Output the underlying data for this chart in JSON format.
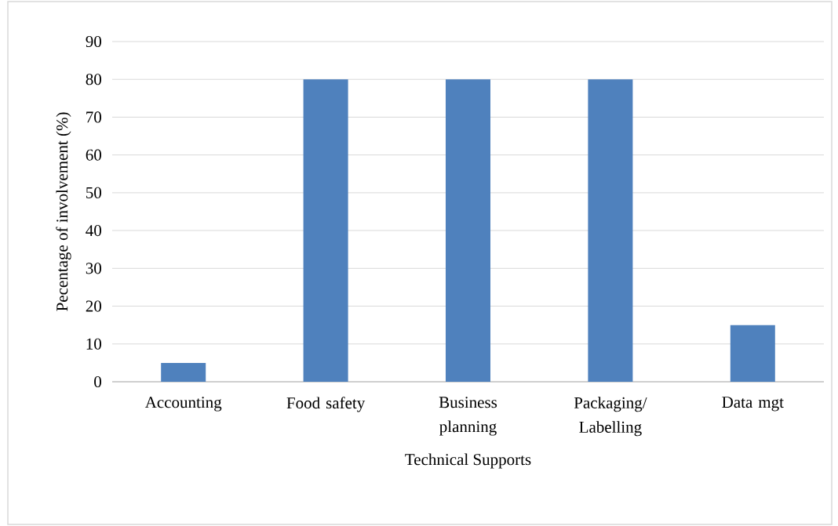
{
  "chart_data": {
    "type": "bar",
    "categories": [
      "Accounting",
      "Food safety",
      "Business planning",
      "Packaging/ Labelling",
      "Data mgt"
    ],
    "values": [
      5,
      80,
      80,
      80,
      15
    ],
    "color": "#4f81bd",
    "xlabel": "Technical Supports",
    "ylabel": "Pecentage of involvement (%)",
    "ylim": [
      0,
      90
    ],
    "yticks": [
      0,
      10,
      20,
      30,
      40,
      50,
      60,
      70,
      80,
      90
    ],
    "grid": "y"
  }
}
